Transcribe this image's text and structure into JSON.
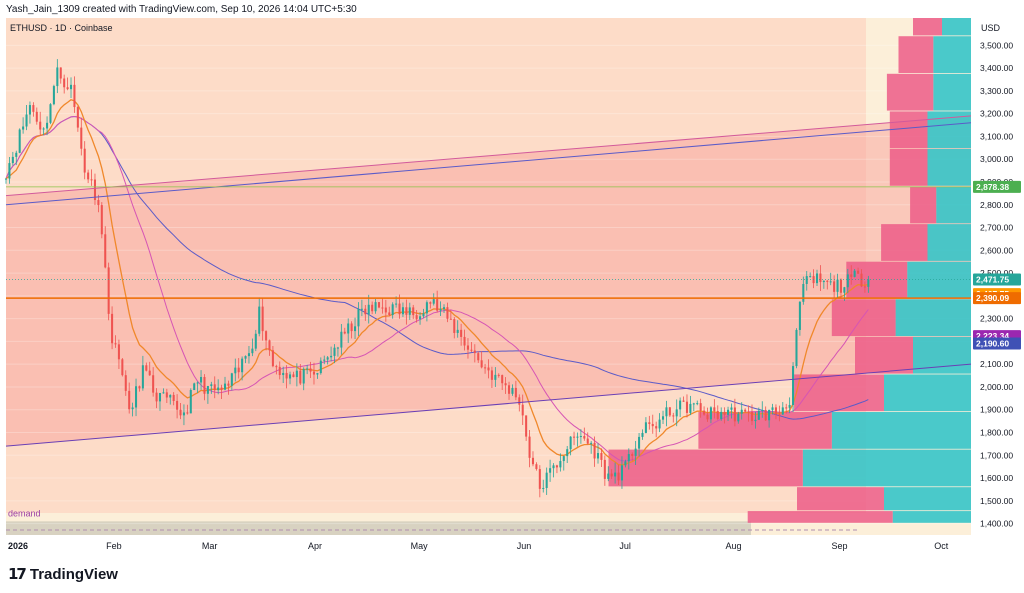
{
  "header": {
    "attribution": "Yash_Jain_1309 created with TradingView.com, Sep 10, 2026 14:04 UTC+5:30"
  },
  "footer": {
    "mark": "17",
    "brand": "TradingView"
  },
  "colors": {
    "zone_bg": "#fddcc8",
    "zone_future": "#fcefd9",
    "channel_fill": "#f7a7a0",
    "up": "#26a69a",
    "down": "#ef5350",
    "ema_fast": "#f0882b",
    "ma_pink": "#d655b4",
    "ma_blue": "#5b5bc8",
    "level": "#ef6c00",
    "vp_sell": "#ec5c87",
    "vp_buy": "#36c4c8",
    "demand": "#ccc8b8",
    "channel_line": "#d25a9b"
  },
  "chart_data": {
    "type": "candlestick",
    "symbol": "ETHUSD · 1D · Coinbase",
    "currency": "USD",
    "y_axis_ticks": [
      1400,
      1500,
      1600,
      1700,
      1800,
      1900,
      2000,
      2100,
      2200,
      2300,
      2400,
      2500,
      2600,
      2700,
      2800,
      2900,
      3000,
      3100,
      3200,
      3300,
      3400,
      3500
    ],
    "x_axis_labels": [
      {
        "label": "2026",
        "date": "2026-01-01"
      },
      {
        "label": "Feb",
        "date": "2026-02-01"
      },
      {
        "label": "Mar",
        "date": "2026-03-01"
      },
      {
        "label": "Apr",
        "date": "2026-04-01"
      },
      {
        "label": "May",
        "date": "2026-05-01"
      },
      {
        "label": "Jun",
        "date": "2026-06-01"
      },
      {
        "label": "Jul",
        "date": "2026-07-01"
      },
      {
        "label": "Aug",
        "date": "2026-08-01"
      },
      {
        "label": "Sep",
        "date": "2026-09-01"
      },
      {
        "label": "Oct",
        "date": "2026-10-01"
      }
    ],
    "x_range": [
      "2026-01-01",
      "2026-10-10"
    ],
    "y_range": [
      1350,
      3620
    ],
    "price_labels": [
      {
        "value": 2878.38,
        "text": "2,878.38",
        "color": "#4caf50"
      },
      {
        "value": 2471.75,
        "text": "2,471.75",
        "color": "#26a69a"
      },
      {
        "value": 2407.75,
        "text": "2,407.75",
        "color": "#ff9800"
      },
      {
        "value": 2390.09,
        "text": "2,390.09",
        "color": "#ef6c00"
      },
      {
        "value": 2223.34,
        "text": "2,223.34",
        "color": "#9c27b0"
      },
      {
        "value": 2190.6,
        "text": "2,190.60",
        "color": "#3f51b5"
      }
    ],
    "horizontal_level": 2390.09,
    "demand_zone": {
      "label": "demand",
      "top": 1410,
      "bottom": 1350
    },
    "channel": {
      "upper": [
        {
          "date": "2026-01-01",
          "price": 2840
        },
        {
          "date": "2026-10-10",
          "price": 3190
        }
      ],
      "upper_blue": [
        {
          "date": "2026-01-01",
          "price": 2800
        },
        {
          "date": "2026-10-10",
          "price": 3160
        }
      ],
      "lower": [
        {
          "date": "2026-01-01",
          "price": 1740
        },
        {
          "date": "2026-10-10",
          "price": 2100
        }
      ]
    },
    "ohlc_anchors": [
      [
        "2026-01-01",
        2950
      ],
      [
        "2026-01-04",
        3060
      ],
      [
        "2026-01-08",
        3240
      ],
      [
        "2026-01-12",
        3120
      ],
      [
        "2026-01-16",
        3380
      ],
      [
        "2026-01-20",
        3310
      ],
      [
        "2026-01-24",
        2960
      ],
      [
        "2026-01-28",
        2820
      ],
      [
        "2026-02-01",
        2200
      ],
      [
        "2026-02-04",
        2080
      ],
      [
        "2026-02-06",
        1870
      ],
      [
        "2026-02-10",
        2080
      ],
      [
        "2026-02-14",
        1960
      ],
      [
        "2026-02-18",
        1930
      ],
      [
        "2026-02-22",
        1880
      ],
      [
        "2026-02-26",
        2030
      ],
      [
        "2026-03-02",
        1980
      ],
      [
        "2026-03-06",
        1990
      ],
      [
        "2026-03-10",
        2070
      ],
      [
        "2026-03-14",
        2200
      ],
      [
        "2026-03-16",
        2330
      ],
      [
        "2026-03-20",
        2100
      ],
      [
        "2026-03-26",
        2040
      ],
      [
        "2026-04-01",
        2050
      ],
      [
        "2026-04-06",
        2150
      ],
      [
        "2026-04-10",
        2230
      ],
      [
        "2026-04-15",
        2330
      ],
      [
        "2026-04-20",
        2350
      ],
      [
        "2026-04-25",
        2340
      ],
      [
        "2026-04-30",
        2320
      ],
      [
        "2026-05-05",
        2380
      ],
      [
        "2026-05-10",
        2300
      ],
      [
        "2026-05-15",
        2200
      ],
      [
        "2026-05-20",
        2100
      ],
      [
        "2026-05-25",
        2030
      ],
      [
        "2026-05-31",
        1950
      ],
      [
        "2026-06-03",
        1710
      ],
      [
        "2026-06-06",
        1560
      ],
      [
        "2026-06-10",
        1640
      ],
      [
        "2026-06-14",
        1740
      ],
      [
        "2026-06-18",
        1790
      ],
      [
        "2026-06-22",
        1720
      ],
      [
        "2026-06-26",
        1600
      ],
      [
        "2026-07-01",
        1640
      ],
      [
        "2026-07-05",
        1790
      ],
      [
        "2026-07-10",
        1840
      ],
      [
        "2026-07-15",
        1900
      ],
      [
        "2026-07-20",
        1920
      ],
      [
        "2026-07-25",
        1880
      ],
      [
        "2026-07-31",
        1890
      ],
      [
        "2026-08-05",
        1870
      ],
      [
        "2026-08-10",
        1880
      ],
      [
        "2026-08-15",
        1890
      ],
      [
        "2026-08-18",
        1950
      ],
      [
        "2026-08-20",
        2230
      ],
      [
        "2026-08-22",
        2450
      ],
      [
        "2026-08-26",
        2470
      ],
      [
        "2026-08-30",
        2440
      ],
      [
        "2026-09-03",
        2450
      ],
      [
        "2026-09-06",
        2480
      ],
      [
        "2026-09-10",
        2471.75
      ]
    ],
    "volume_profile": [
      {
        "price_low": 1400,
        "price_high": 1455,
        "sell": 0.5,
        "buy": 0.27
      },
      {
        "price_low": 1455,
        "price_high": 1560,
        "sell": 0.3,
        "buy": 0.3
      },
      {
        "price_low": 1560,
        "price_high": 1725,
        "sell": 0.67,
        "buy": 0.58
      },
      {
        "price_low": 1725,
        "price_high": 1890,
        "sell": 0.46,
        "buy": 0.48
      },
      {
        "price_low": 1890,
        "price_high": 2055,
        "sell": 0.31,
        "buy": 0.3
      },
      {
        "price_low": 2055,
        "price_high": 2220,
        "sell": 0.2,
        "buy": 0.2
      },
      {
        "price_low": 2220,
        "price_high": 2385,
        "sell": 0.22,
        "buy": 0.26
      },
      {
        "price_low": 2385,
        "price_high": 2550,
        "sell": 0.21,
        "buy": 0.22
      },
      {
        "price_low": 2550,
        "price_high": 2715,
        "sell": 0.16,
        "buy": 0.15
      },
      {
        "price_low": 2715,
        "price_high": 2880,
        "sell": 0.09,
        "buy": 0.12
      },
      {
        "price_low": 2880,
        "price_high": 3045,
        "sell": 0.13,
        "buy": 0.15
      },
      {
        "price_low": 3045,
        "price_high": 3210,
        "sell": 0.13,
        "buy": 0.15
      },
      {
        "price_low": 3210,
        "price_high": 3375,
        "sell": 0.16,
        "buy": 0.13
      },
      {
        "price_low": 3375,
        "price_high": 3540,
        "sell": 0.12,
        "buy": 0.13
      },
      {
        "price_low": 3540,
        "price_high": 3620,
        "sell": 0.1,
        "buy": 0.1
      }
    ]
  }
}
